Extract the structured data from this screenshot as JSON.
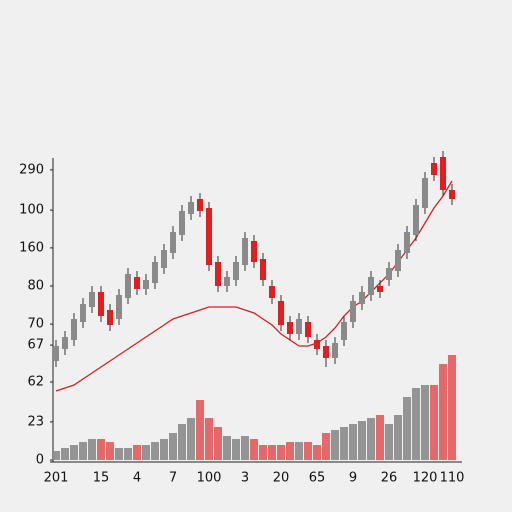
{
  "chart_data": {
    "type": "candlestick",
    "categories": [
      "201",
      null,
      null,
      null,
      null,
      "15",
      null,
      null,
      null,
      "4",
      null,
      null,
      null,
      "7",
      null,
      null,
      null,
      "100",
      null,
      null,
      null,
      "3",
      null,
      null,
      null,
      "20",
      null,
      null,
      null,
      "65",
      null,
      null,
      null,
      "9",
      null,
      null,
      null,
      "26",
      null,
      null,
      null,
      "120",
      null,
      null,
      "110"
    ],
    "ylim": [
      0,
      100
    ],
    "yticks": [
      {
        "value": 96.7,
        "label": "290"
      },
      {
        "value": 83.3,
        "label": "100"
      },
      {
        "value": 70.7,
        "label": "160"
      },
      {
        "value": 58,
        "label": "80"
      },
      {
        "value": 45.3,
        "label": "70"
      },
      {
        "value": 38.3,
        "label": "67"
      },
      {
        "value": 26,
        "label": "62"
      },
      {
        "value": 12.7,
        "label": "23"
      },
      0
    ],
    "up_color": "#8a8a8a",
    "down_color": "#e02020",
    "open": [
      33,
      37,
      40,
      46,
      51,
      56,
      50,
      47,
      54,
      61,
      57,
      59,
      64,
      69,
      75,
      82,
      87,
      84,
      66,
      58,
      60,
      65,
      73,
      67,
      58,
      53,
      46,
      42,
      46,
      40,
      38,
      34,
      40,
      46,
      52,
      55,
      58,
      60,
      63,
      69,
      75,
      84,
      99,
      101,
      90
    ],
    "close": [
      38,
      41,
      47,
      52,
      56,
      48,
      45,
      55,
      62,
      57,
      60,
      66,
      70,
      76,
      83,
      86,
      83,
      65,
      58,
      61,
      66,
      74,
      66,
      60,
      54,
      45,
      42,
      47,
      41,
      37,
      34,
      39,
      46,
      53,
      56,
      61,
      56,
      64,
      70,
      76,
      85,
      94,
      95,
      90,
      87
    ],
    "high": [
      40,
      43,
      49,
      54,
      58,
      58,
      52,
      57,
      64,
      63,
      62,
      68,
      72,
      78,
      85,
      88,
      89,
      86,
      68,
      63,
      68,
      76,
      75,
      69,
      60,
      55,
      48,
      49,
      48,
      42,
      40,
      41,
      48,
      55,
      58,
      63,
      60,
      66,
      72,
      78,
      87,
      96,
      101,
      103,
      92
    ],
    "low": [
      31,
      35,
      38,
      44,
      49,
      46,
      43,
      45,
      52,
      55,
      55,
      57,
      62,
      67,
      73,
      80,
      81,
      63,
      56,
      56,
      58,
      63,
      64,
      58,
      52,
      43,
      40,
      40,
      39,
      35,
      31,
      32,
      38,
      44,
      50,
      53,
      54,
      58,
      61,
      67,
      73,
      82,
      93,
      88,
      85
    ],
    "volume": [
      3,
      4,
      5,
      6,
      7,
      7,
      6,
      4,
      4,
      5,
      5,
      6,
      7,
      9,
      12,
      14,
      20,
      14,
      11,
      8,
      7,
      8,
      7,
      5,
      5,
      5,
      6,
      6,
      6,
      5,
      9,
      10,
      11,
      12,
      13,
      14,
      15,
      12,
      15,
      21,
      24,
      25,
      25,
      32,
      35
    ],
    "ma": {
      "color": "#d42020",
      "values": [
        23,
        24,
        25,
        27,
        29,
        31,
        33,
        35,
        37,
        39,
        41,
        43,
        45,
        47,
        48,
        49,
        50,
        51,
        51,
        51,
        51,
        50,
        49,
        47,
        45,
        42,
        40,
        38,
        38,
        39,
        41,
        44,
        48,
        51,
        53,
        56,
        59,
        62,
        66,
        70,
        74,
        79,
        84,
        88,
        93
      ]
    }
  }
}
